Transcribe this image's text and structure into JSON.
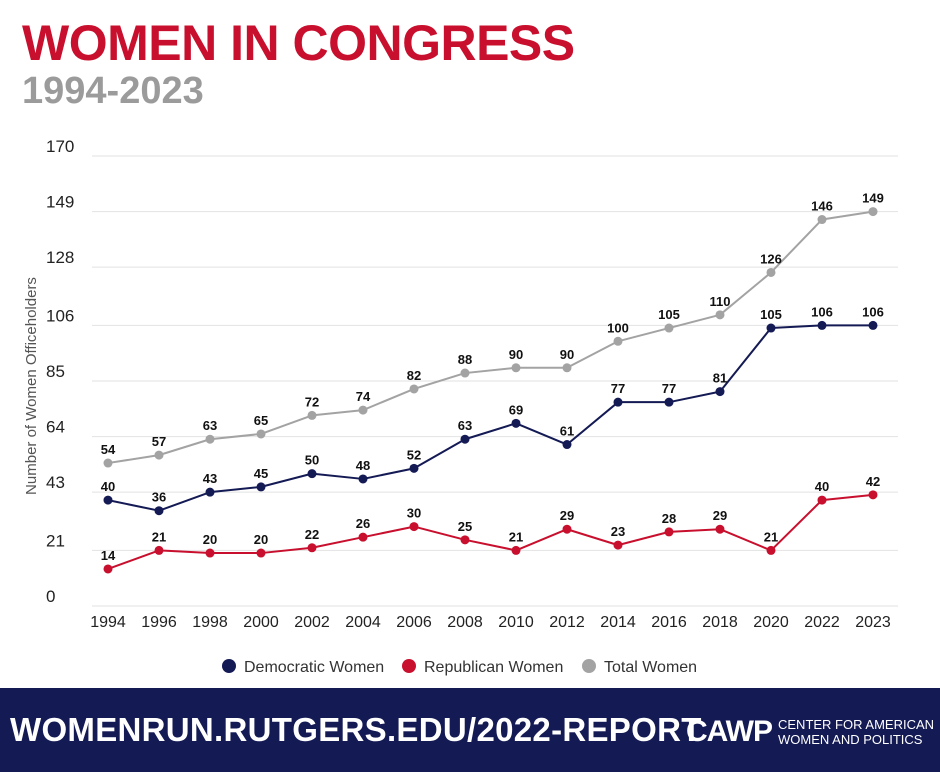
{
  "header": {
    "title": "WOMEN IN CONGRESS",
    "subtitle": "1994-2023"
  },
  "colors": {
    "title": "#c8102e",
    "subtitle": "#9b9b9b",
    "democratic": "#141a54",
    "republican": "#c8102e",
    "total": "#a3a3a3",
    "grid": "#e2e2e2",
    "footer_bg": "#141a54"
  },
  "chart_data": {
    "type": "line",
    "title": "WOMEN IN CONGRESS",
    "subtitle": "1994-2023",
    "xlabel": "",
    "ylabel": "Number of Women Officeholders",
    "categories": [
      "1994",
      "1996",
      "1998",
      "2000",
      "2002",
      "2004",
      "2006",
      "2008",
      "2010",
      "2012",
      "2014",
      "2016",
      "2018",
      "2020",
      "2022",
      "2023"
    ],
    "yticks": [
      0,
      21,
      43,
      64,
      85,
      106,
      128,
      149,
      170
    ],
    "ylim": [
      0,
      170
    ],
    "grid": true,
    "legend_position": "bottom",
    "series": [
      {
        "name": "Democratic Women",
        "color": "#141a54",
        "values": [
          40,
          36,
          43,
          45,
          50,
          48,
          52,
          63,
          69,
          61,
          77,
          77,
          81,
          105,
          106,
          106
        ]
      },
      {
        "name": "Republican Women",
        "color": "#c8102e",
        "values": [
          14,
          21,
          20,
          20,
          22,
          26,
          30,
          25,
          21,
          29,
          23,
          28,
          29,
          21,
          40,
          42
        ]
      },
      {
        "name": "Total Women",
        "color": "#a3a3a3",
        "values": [
          54,
          57,
          63,
          65,
          72,
          74,
          82,
          88,
          90,
          90,
          100,
          105,
          110,
          126,
          146,
          149
        ]
      }
    ]
  },
  "footer": {
    "url": "WOMENRUN.RUTGERS.EDU/2022-REPORT",
    "logo": "CAWP",
    "org_line1": "CENTER FOR AMERICAN",
    "org_line2": "WOMEN AND POLITICS"
  }
}
